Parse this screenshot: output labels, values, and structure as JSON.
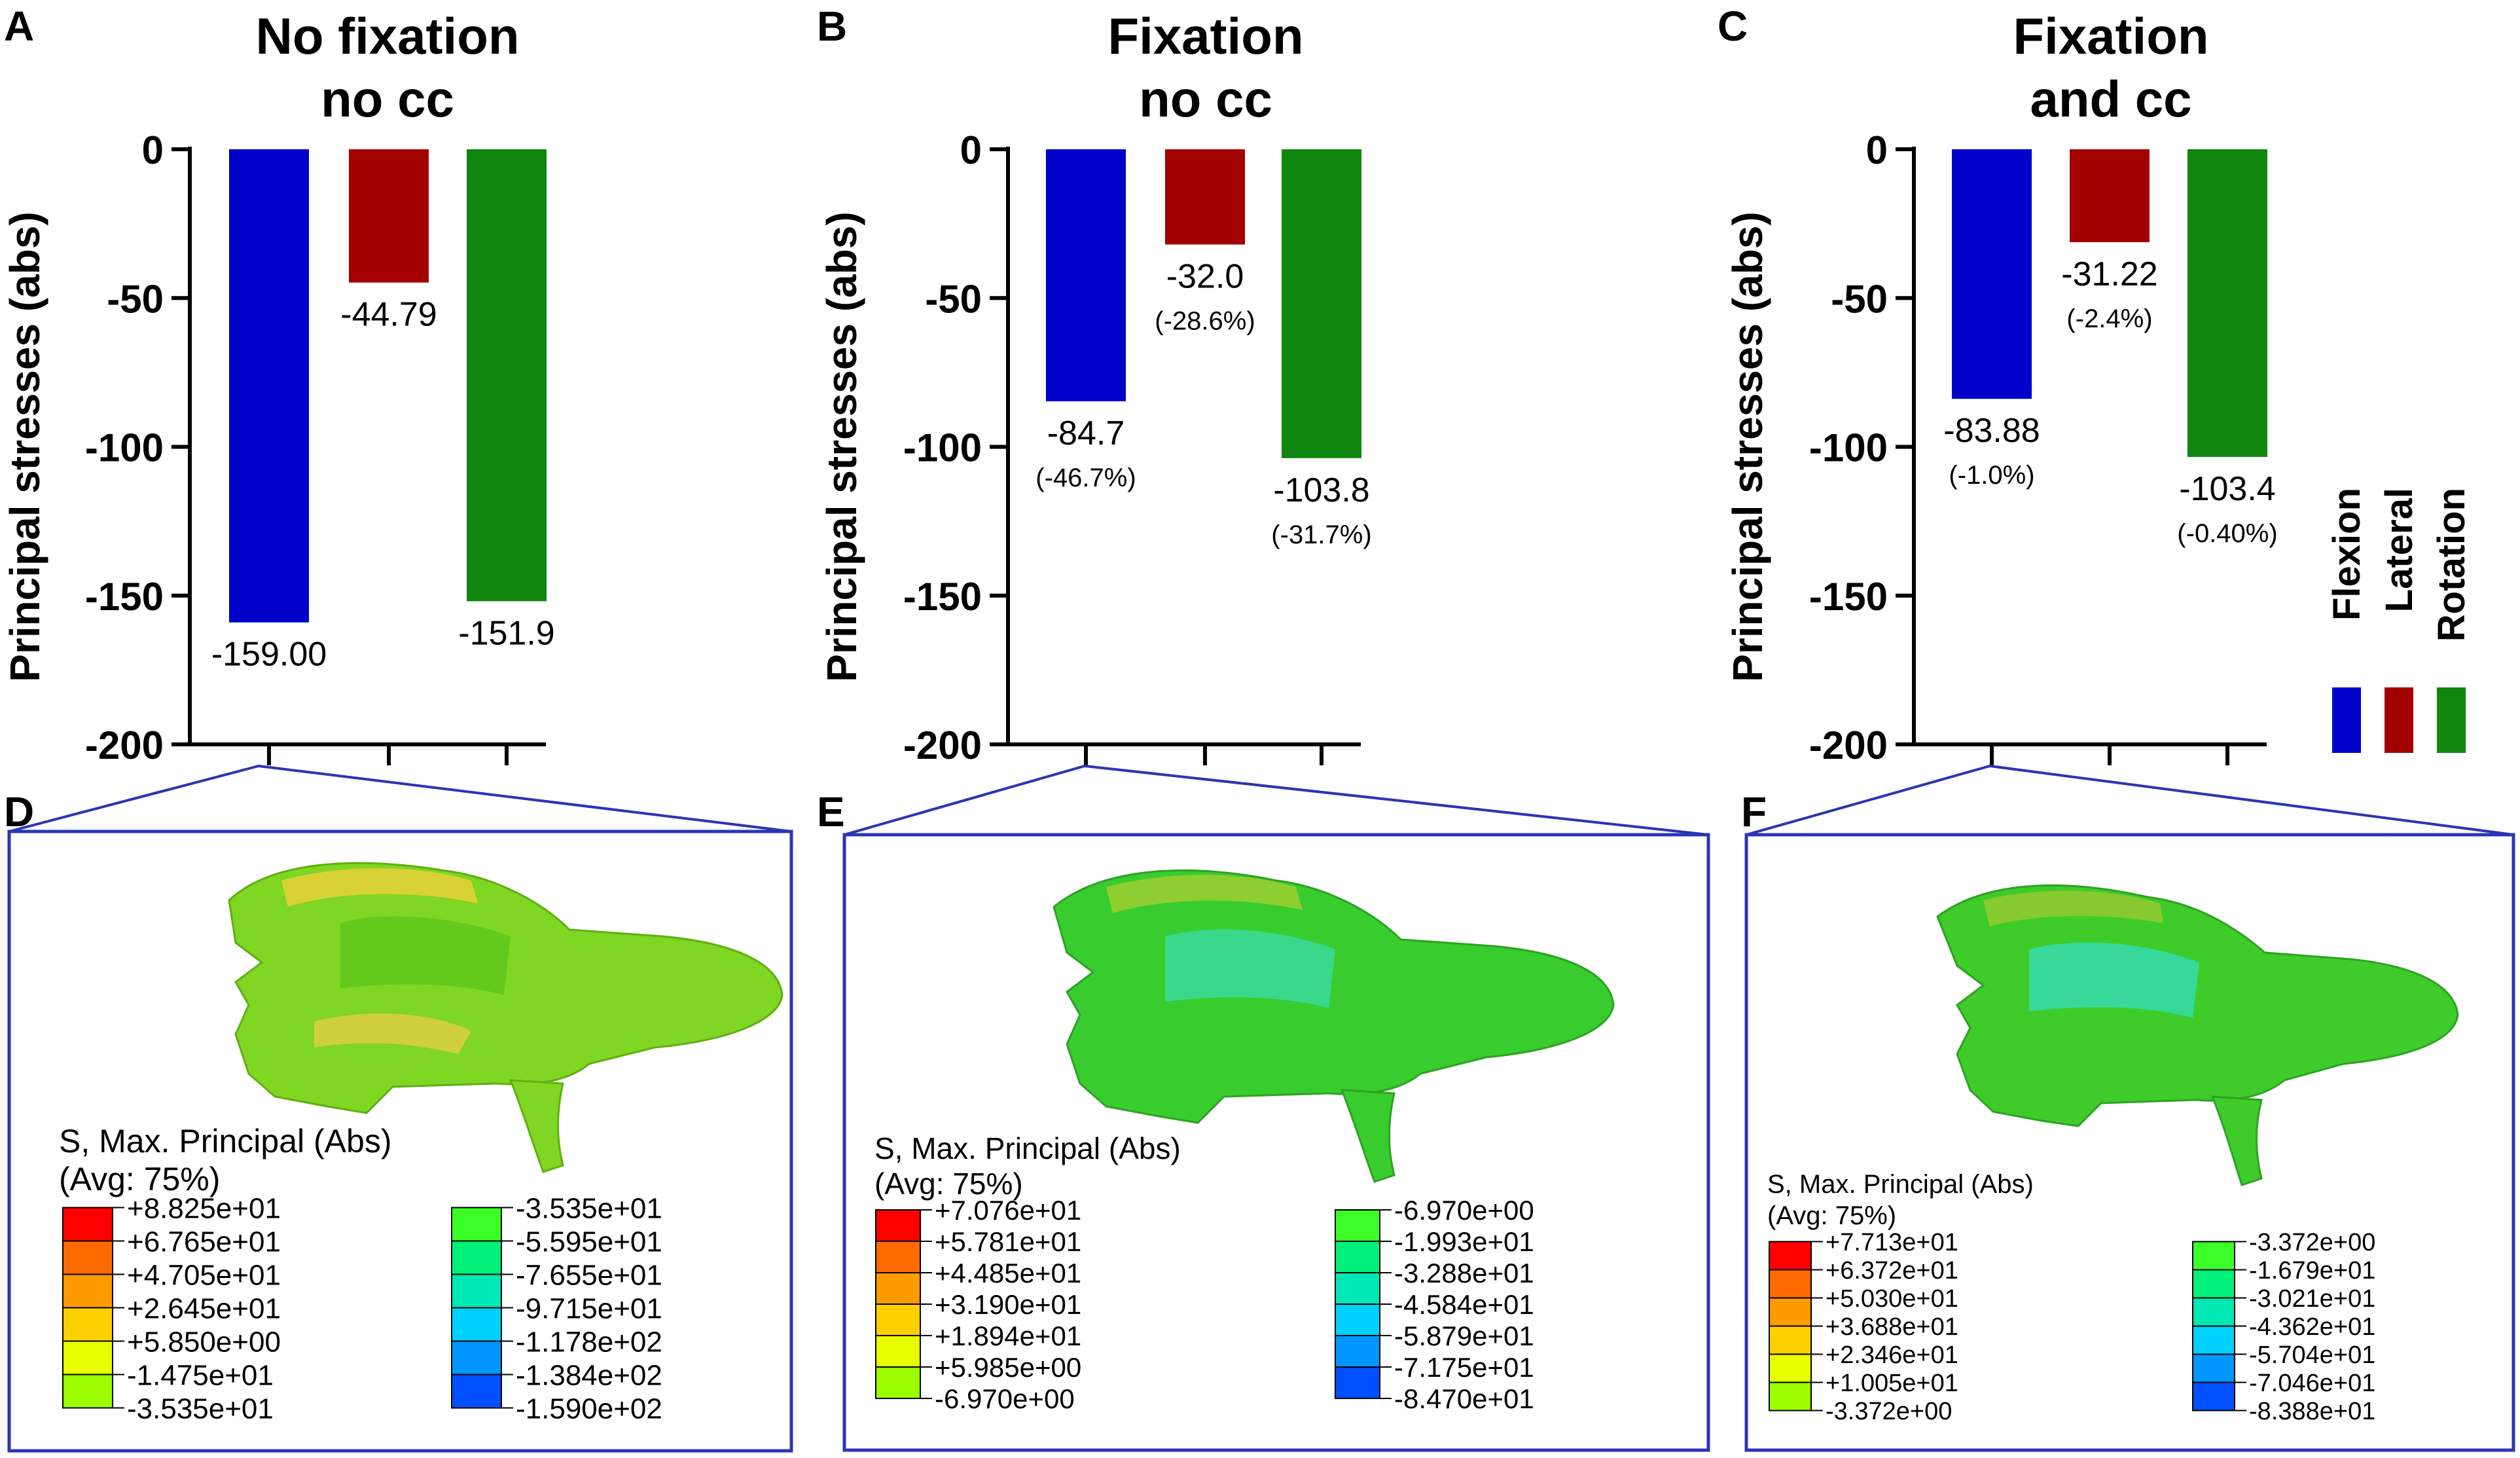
{
  "colors": {
    "flexion": "#0000c8",
    "lateral": "#a30000",
    "rotation": "#0f870f",
    "frame": "#2b35b4"
  },
  "legend": {
    "items": [
      "Flexion",
      "Lateral",
      "Rotation"
    ]
  },
  "chart_data": [
    {
      "type": "bar",
      "panel": "A",
      "title_lines": [
        "No fixation",
        "no cc"
      ],
      "ylabel": "Principal stresses (abs)",
      "ylim": [
        -200,
        0
      ],
      "yticks": [
        0,
        -50,
        -100,
        -150,
        -200
      ],
      "categories": [
        "Flexion",
        "Lateral",
        "Rotation"
      ],
      "values": [
        -159.0,
        -44.79,
        -151.9
      ],
      "value_labels": [
        "-159.00",
        "-44.79",
        "-151.9"
      ],
      "percent_labels": [
        "",
        "",
        ""
      ]
    },
    {
      "type": "bar",
      "panel": "B",
      "title_lines": [
        "Fixation",
        "no cc"
      ],
      "ylabel": "Principal stresses (abs)",
      "ylim": [
        -200,
        0
      ],
      "yticks": [
        0,
        -50,
        -100,
        -150,
        -200
      ],
      "categories": [
        "Flexion",
        "Lateral",
        "Rotation"
      ],
      "values": [
        -84.7,
        -32.0,
        -103.8
      ],
      "value_labels": [
        "-84.7",
        "-32.0",
        "-103.8"
      ],
      "percent_labels": [
        "(-46.7%)",
        "(-28.6%)",
        "(-31.7%)"
      ]
    },
    {
      "type": "bar",
      "panel": "C",
      "title_lines": [
        "Fixation",
        "and cc"
      ],
      "ylabel": "Principal stresses (abs)",
      "ylim": [
        -200,
        0
      ],
      "yticks": [
        0,
        -50,
        -100,
        -150,
        -200
      ],
      "categories": [
        "Flexion",
        "Lateral",
        "Rotation"
      ],
      "values": [
        -83.88,
        -31.22,
        -103.4
      ],
      "value_labels": [
        "-83.88",
        "-31.22",
        "-103.4"
      ],
      "percent_labels": [
        "(-1.0%)",
        "(-2.4%)",
        "(-0.40%)"
      ]
    }
  ],
  "contours": [
    {
      "panel": "D",
      "title": "S, Max. Principal (Abs)",
      "avg": "(Avg: 75%)",
      "left_values": [
        "+8.825e+01",
        "+6.765e+01",
        "+4.705e+01",
        "+2.645e+01",
        "+5.850e+00",
        "-1.475e+01",
        "-3.535e+01"
      ],
      "right_values": [
        "-3.535e+01",
        "-5.595e+01",
        "-7.655e+01",
        "-9.715e+01",
        "-1.178e+02",
        "-1.384e+02",
        "-1.590e+02"
      ]
    },
    {
      "panel": "E",
      "title": "S, Max. Principal (Abs)",
      "avg": "(Avg: 75%)",
      "left_values": [
        "+7.076e+01",
        "+5.781e+01",
        "+4.485e+01",
        "+3.190e+01",
        "+1.894e+01",
        "+5.985e+00",
        "-6.970e+00"
      ],
      "right_values": [
        "-6.970e+00",
        "-1.993e+01",
        "-3.288e+01",
        "-4.584e+01",
        "-5.879e+01",
        "-7.175e+01",
        "-8.470e+01"
      ]
    },
    {
      "panel": "F",
      "title": "S, Max. Principal (Abs)",
      "avg": "(Avg: 75%)",
      "left_values": [
        "+7.713e+01",
        "+6.372e+01",
        "+5.030e+01",
        "+3.688e+01",
        "+2.346e+01",
        "+1.005e+01",
        "-3.372e+00"
      ],
      "right_values": [
        "-3.372e+00",
        "-1.679e+01",
        "-3.021e+01",
        "-4.362e+01",
        "-5.704e+01",
        "-7.046e+01",
        "-8.388e+01"
      ]
    }
  ],
  "legend_left_colors": [
    "#ff0000",
    "#ff6a00",
    "#ff9a00",
    "#ffd000",
    "#e8ff00",
    "#9cff00",
    "#3cff28"
  ],
  "legend_right_colors": [
    "#3cff28",
    "#00f07a",
    "#00e8b4",
    "#00d2ff",
    "#0096ff",
    "#0050ff",
    "#0000ff"
  ]
}
